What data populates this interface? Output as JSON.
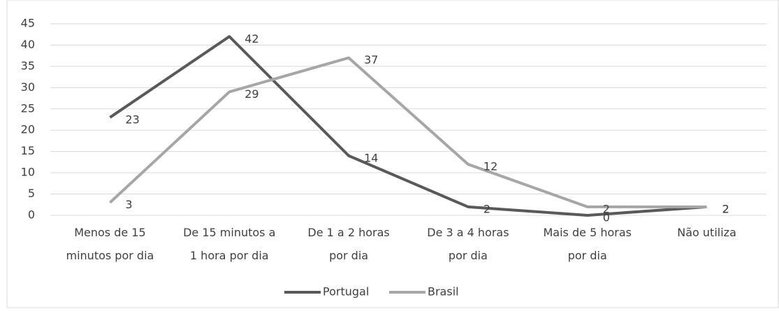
{
  "chart_data": {
    "type": "line",
    "categories": [
      "Menos de 15 minutos por dia",
      "De 15 minutos a 1 hora por dia",
      "De 1 a 2 horas por dia",
      "De 3 a 4 horas por dia",
      "Mais de 5 horas por dia",
      "Não utiliza"
    ],
    "series": [
      {
        "name": "Portugal",
        "color": "#595959",
        "values": [
          23,
          42,
          14,
          2,
          0,
          2
        ]
      },
      {
        "name": "Brasil",
        "color": "#a6a6a6",
        "values": [
          3,
          29,
          37,
          12,
          2,
          2
        ]
      }
    ],
    "ylim": [
      0,
      45
    ],
    "yticks": [
      0,
      5,
      10,
      15,
      20,
      25,
      30,
      35,
      40,
      45
    ],
    "grid": true,
    "legend": "bottom"
  }
}
